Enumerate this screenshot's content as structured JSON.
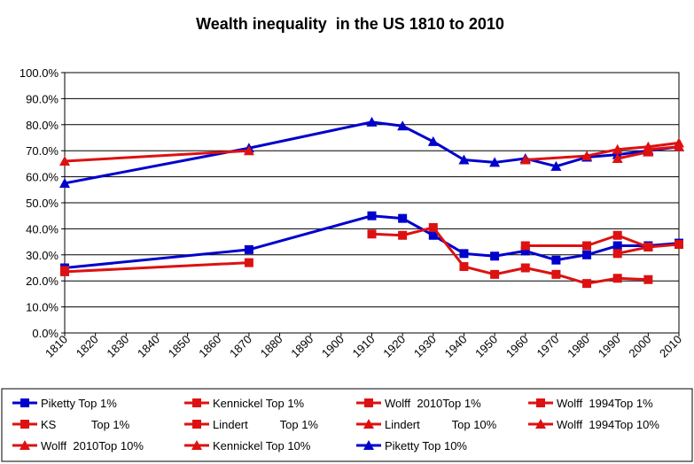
{
  "chart_data": {
    "type": "line",
    "title": "Wealth inequality  in the US 1810 to 2010",
    "xlabel": "",
    "ylabel": "",
    "x_ticks": [
      "1810",
      "1820",
      "1830",
      "1840",
      "1850",
      "1860",
      "1870",
      "1880",
      "1890",
      "1900",
      "1910",
      "1920",
      "1930",
      "1940",
      "1950",
      "1960",
      "1970",
      "1980",
      "1990",
      "2000",
      "2010"
    ],
    "y_ticks": [
      "0.0%",
      "10.0%",
      "20.0%",
      "30.0%",
      "40.0%",
      "50.0%",
      "60.0%",
      "70.0%",
      "80.0%",
      "90.0%",
      "100.0%"
    ],
    "xlim": [
      1810,
      2010
    ],
    "ylim": [
      0,
      100
    ],
    "grid": "horizontal",
    "legend_position": "bottom",
    "series": [
      {
        "name": "Piketty Top 10%",
        "color": "#0000cc",
        "marker": "triangle",
        "x": [
          1810,
          1870,
          1910,
          1920,
          1930,
          1940,
          1950,
          1960,
          1970,
          1980,
          1990,
          2000,
          2010
        ],
        "y": [
          57.5,
          71,
          81,
          79.5,
          73.5,
          66.5,
          65.5,
          67,
          64,
          67.5,
          68.5,
          70,
          71.5
        ]
      },
      {
        "name": "Piketty Top 1%",
        "color": "#0000cc",
        "marker": "square",
        "x": [
          1810,
          1870,
          1910,
          1920,
          1930,
          1940,
          1950,
          1960,
          1970,
          1980,
          1990,
          2000,
          2010
        ],
        "y": [
          25,
          32,
          45,
          44,
          37.5,
          30.5,
          29.5,
          31.5,
          28,
          30,
          33.5,
          33.5,
          34.5
        ]
      },
      {
        "name": "KS           Top 1%",
        "color": "#dd1111",
        "marker": "square",
        "x": [
          1810
        ],
        "y": [
          24
        ]
      },
      {
        "name": "Lindert          Top 1%",
        "color": "#dd1111",
        "marker": "square",
        "x": [
          1810,
          1870
        ],
        "y": [
          23.5,
          27
        ]
      },
      {
        "name": "Lindert          Top 10%",
        "color": "#dd1111",
        "marker": "triangle",
        "x": [
          1810,
          1870
        ],
        "y": [
          66,
          70
        ]
      },
      {
        "name": "Kennickel Top 1%",
        "color": "#dd1111",
        "marker": "square",
        "x": [
          1910,
          1920,
          1930,
          1940,
          1950,
          1960,
          1970,
          1980,
          1990,
          2000
        ],
        "y": [
          38,
          37.5,
          40.5,
          25.5,
          22.5,
          25,
          22.5,
          19,
          21,
          20.5
        ]
      },
      {
        "name": "Kennickel Top 10%",
        "color": "#dd1111",
        "marker": "triangle",
        "x": [
          1960,
          1980,
          1990,
          2000,
          2010
        ],
        "y": [
          66.5,
          68,
          70.5,
          71.5,
          73
        ]
      },
      {
        "name": "Wolff  2010Top 1%",
        "color": "#dd1111",
        "marker": "square",
        "x": [
          1960,
          1980,
          1990,
          2000,
          2010
        ],
        "y": [
          33.5,
          33.5,
          37.5,
          33,
          34
        ]
      },
      {
        "name": "Wolff  1994Top 1%",
        "color": "#dd1111",
        "marker": "square",
        "x": [
          1990,
          2000
        ],
        "y": [
          30.5,
          33
        ]
      },
      {
        "name": "Wolff  1994Top 10%",
        "color": "#dd1111",
        "marker": "triangle",
        "x": [
          1990,
          2000
        ],
        "y": [
          67,
          69.5
        ]
      },
      {
        "name": "Wolff  2010Top 10%",
        "color": "#dd1111",
        "marker": "triangle",
        "x": [
          2000,
          2010
        ],
        "y": [
          70.5,
          71.5
        ]
      }
    ],
    "legend": [
      {
        "label": "Piketty Top 1%",
        "color": "#0000cc",
        "marker": "square"
      },
      {
        "label": "Kennickel Top 1%",
        "color": "#dd1111",
        "marker": "square"
      },
      {
        "label": "Wolff  2010Top 1%",
        "color": "#dd1111",
        "marker": "square"
      },
      {
        "label": "Wolff  1994Top 1%",
        "color": "#dd1111",
        "marker": "square"
      },
      {
        "label": "KS           Top 1%",
        "color": "#dd1111",
        "marker": "square"
      },
      {
        "label": "Lindert          Top 1%",
        "color": "#dd1111",
        "marker": "square"
      },
      {
        "label": "Lindert          Top 10%",
        "color": "#dd1111",
        "marker": "triangle"
      },
      {
        "label": "Wolff  1994Top 10%",
        "color": "#dd1111",
        "marker": "triangle"
      },
      {
        "label": "Wolff  2010Top 10%",
        "color": "#dd1111",
        "marker": "triangle"
      },
      {
        "label": "Kennickel Top 10%",
        "color": "#dd1111",
        "marker": "triangle"
      },
      {
        "label": "Piketty Top 10%",
        "color": "#0000cc",
        "marker": "triangle"
      }
    ]
  }
}
